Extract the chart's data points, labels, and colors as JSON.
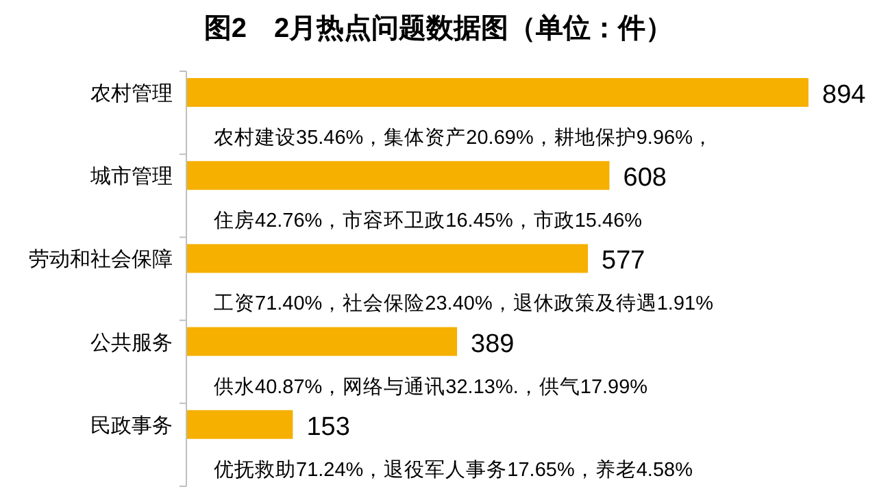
{
  "chart_data": {
    "type": "bar",
    "orientation": "horizontal",
    "title": "图2　2月热点问题数据图（单位：件）",
    "categories": [
      "农村管理",
      "城市管理",
      "劳动和社会保障",
      "公共服务",
      "民政事务"
    ],
    "values": [
      894,
      608,
      577,
      389,
      153
    ],
    "color": "#f5b000",
    "data_labels": true,
    "annotations": [
      "农村建设35.46%，集体资产20.69%，耕地保护9.96%，",
      "住房42.76%，市容环卫政16.45%，市政15.46%",
      "工资71.40%，社会保险23.40%，退休政策及待遇1.91%",
      "供水40.87%，网络与通讯32.13%.，供气17.99%",
      "优抚救助71.24%，退役军人事务17.65%，养老4.58%"
    ]
  }
}
